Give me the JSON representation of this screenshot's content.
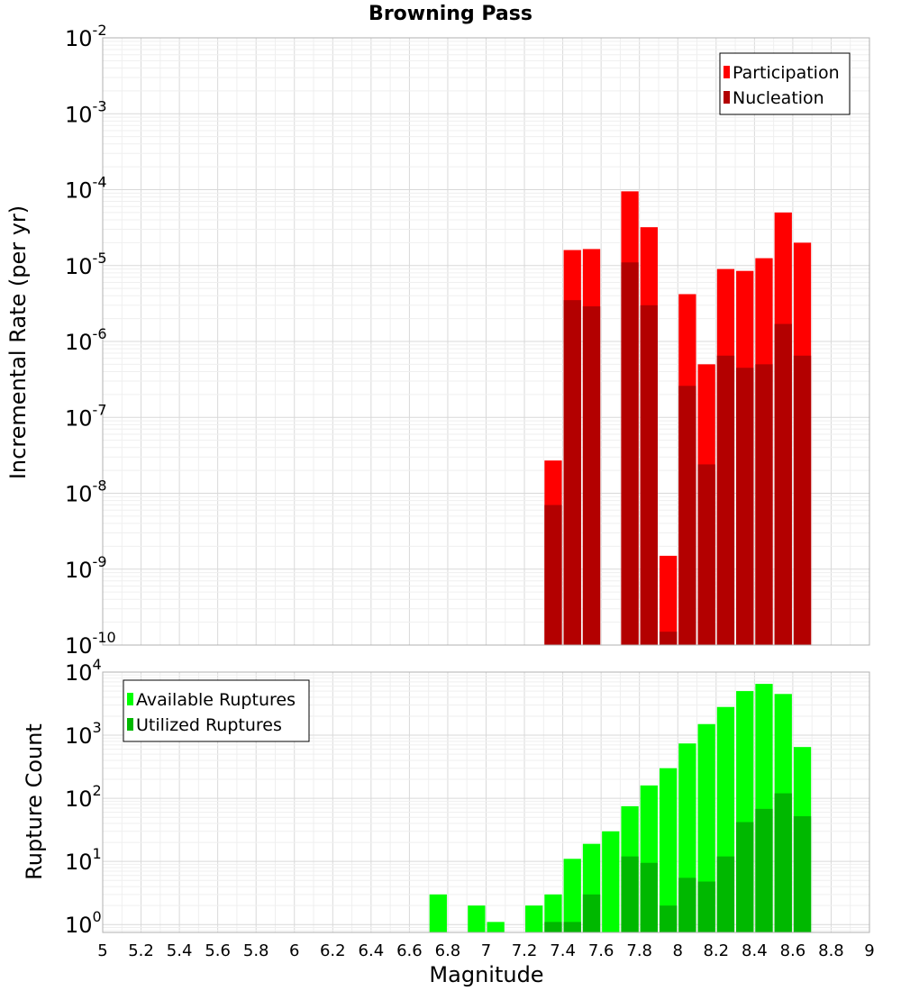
{
  "chart_data": [
    {
      "type": "bar",
      "title": "Browning Pass",
      "xlabel": "",
      "ylabel": "Incremental Rate (per yr)",
      "yscale": "log",
      "ylim": [
        1e-10,
        0.01
      ],
      "xlim": [
        5,
        9
      ],
      "grid": true,
      "legend_position": "top-right",
      "y_ticks": [
        {
          "base": "10",
          "exp": "-2"
        },
        {
          "base": "10",
          "exp": "-3"
        },
        {
          "base": "10",
          "exp": "-4"
        },
        {
          "base": "10",
          "exp": "-5"
        },
        {
          "base": "10",
          "exp": "-6"
        },
        {
          "base": "10",
          "exp": "-7"
        },
        {
          "base": "10",
          "exp": "-8"
        },
        {
          "base": "10",
          "exp": "-9"
        },
        {
          "base": "10",
          "exp": "-10"
        }
      ],
      "x": [
        7.35,
        7.45,
        7.55,
        7.75,
        7.85,
        7.95,
        8.05,
        8.15,
        8.25,
        8.35,
        8.45,
        8.55,
        8.65
      ],
      "series": [
        {
          "name": "Participation",
          "color": "#ff0000",
          "values": [
            2.7e-08,
            1.6e-05,
            1.65e-05,
            9.5e-05,
            3.2e-05,
            1.5e-09,
            4.2e-06,
            5e-07,
            9e-06,
            8.5e-06,
            1.25e-05,
            5e-05,
            2e-05
          ]
        },
        {
          "name": "Nucleation",
          "color": "#b30000",
          "values": [
            7e-09,
            3.5e-06,
            2.9e-06,
            1.1e-05,
            3e-06,
            1.5e-10,
            2.6e-07,
            2.4e-08,
            6.5e-07,
            4.5e-07,
            5e-07,
            1.7e-06,
            6.5e-07
          ]
        }
      ]
    },
    {
      "type": "bar",
      "title": "",
      "xlabel": "Magnitude",
      "ylabel": "Rupture Count",
      "yscale": "log",
      "ylim": [
        0.75,
        10000
      ],
      "xlim": [
        5,
        9
      ],
      "grid": true,
      "legend_position": "top-left",
      "y_ticks": [
        {
          "base": "10",
          "exp": "4"
        },
        {
          "base": "10",
          "exp": "3"
        },
        {
          "base": "10",
          "exp": "2"
        },
        {
          "base": "10",
          "exp": "1"
        },
        {
          "base": "10",
          "exp": "0"
        }
      ],
      "x_tick_labels": [
        "5",
        "5.2",
        "5.4",
        "5.6",
        "5.8",
        "6",
        "6.2",
        "6.4",
        "6.6",
        "6.8",
        "7",
        "7.2",
        "7.4",
        "7.6",
        "7.8",
        "8",
        "8.2",
        "8.4",
        "8.6",
        "8.8",
        "9"
      ],
      "x": [
        6.75,
        6.95,
        7.05,
        7.25,
        7.35,
        7.45,
        7.55,
        7.65,
        7.75,
        7.85,
        7.95,
        8.05,
        8.15,
        8.25,
        8.35,
        8.45,
        8.55,
        8.65
      ],
      "series": [
        {
          "name": "Available Ruptures",
          "color": "#00ff00",
          "values": [
            3,
            2,
            1.1,
            2,
            3,
            11,
            19,
            30,
            75,
            160,
            300,
            740,
            1500,
            2800,
            5000,
            6500,
            4500,
            650
          ]
        },
        {
          "name": "Utilized Ruptures",
          "color": "#00b800",
          "values": [
            0,
            0,
            0,
            0,
            1.1,
            1.1,
            3,
            0,
            12,
            9.5,
            2,
            5.5,
            4.8,
            12,
            42,
            68,
            120,
            52
          ]
        }
      ]
    }
  ]
}
